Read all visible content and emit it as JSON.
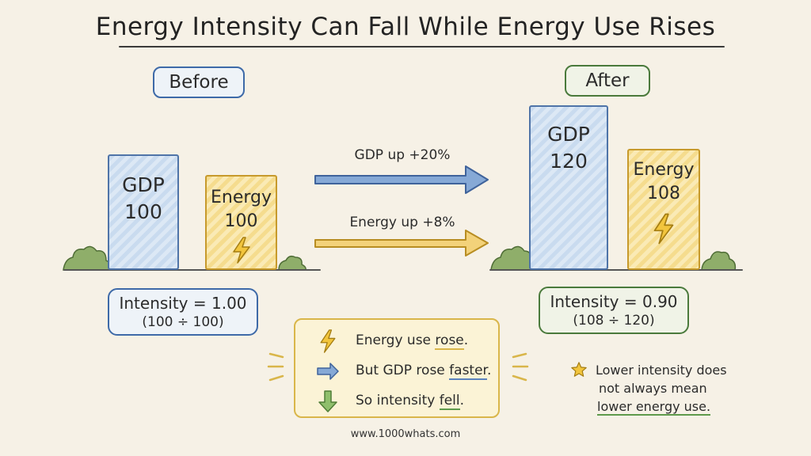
{
  "title": "Energy Intensity Can Fall While Energy Use Rises",
  "before": {
    "label": "Before",
    "gdp_label": "GDP",
    "gdp_value": "100",
    "energy_label": "Energy",
    "energy_value": "100",
    "intensity": "Intensity = 1.00",
    "intensity_calc": "(100 ÷ 100)"
  },
  "after": {
    "label": "After",
    "gdp_label": "GDP",
    "gdp_value": "120",
    "energy_label": "Energy",
    "energy_value": "108",
    "intensity": "Intensity = 0.90",
    "intensity_calc": "(108 ÷ 120)"
  },
  "arrows": {
    "gdp": "GDP up +20%",
    "energy": "Energy up +8%"
  },
  "summary": [
    {
      "icon": "lightning-icon",
      "text_pre": "Energy use ",
      "text_em": "rose",
      "text_post": "."
    },
    {
      "icon": "right-arrow-icon",
      "text_pre": "But GDP rose ",
      "text_em": "faster",
      "text_post": "."
    },
    {
      "icon": "down-arrow-icon",
      "text_pre": "So intensity ",
      "text_em": "fell",
      "text_post": "."
    }
  ],
  "note": {
    "line1": "Lower intensity does",
    "line2": "not always mean",
    "line3": "lower energy use."
  },
  "footer": "www.1000whats.com",
  "colors": {
    "gdp": "#4f74a8",
    "energy": "#c79a2c",
    "after_accent": "#4a7a3c",
    "background": "#f6f1e6"
  }
}
